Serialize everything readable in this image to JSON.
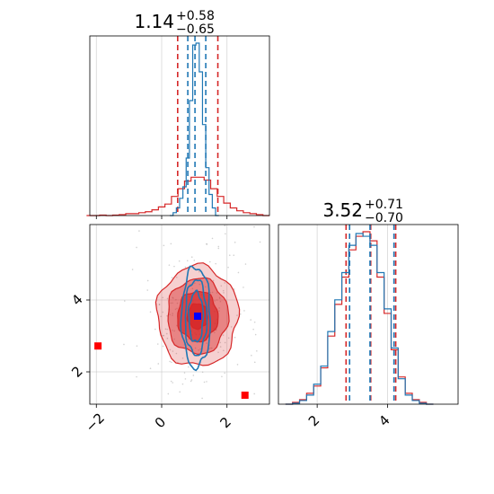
{
  "chart_data": {
    "type": "corner",
    "panels": [
      {
        "id": "param1-histogram",
        "type": "histogram",
        "title": {
          "value": "1.14",
          "upper": "+0.58",
          "lower": "−0.65"
        },
        "xlim": [
          -2.2,
          3.3
        ],
        "xticks": [],
        "series": [
          {
            "name": "",
            "color": "#d62728",
            "x": [
              -2.2,
              -2.0,
              -1.8,
              -1.6,
              -1.4,
              -1.2,
              -1.0,
              -0.8,
              -0.6,
              -0.4,
              -0.2,
              0.0,
              0.2,
              0.4,
              0.6,
              0.8,
              1.0,
              1.2,
              1.4,
              1.6,
              1.8,
              2.0,
              2.2,
              2.4,
              2.6,
              2.8,
              3.0,
              3.2
            ],
            "values": [
              0,
              0,
              0.5,
              0,
              0.5,
              1,
              2,
              2,
              3,
              4,
              6,
              9,
              12,
              20,
              28,
              36,
              40,
              40,
              37,
              28,
              20,
              13,
              8,
              5,
              3,
              2,
              1,
              0
            ],
            "quantiles": [
              0.49,
              1.14,
              1.72
            ]
          },
          {
            "name": "",
            "color": "#1f77b4",
            "x": [
              0.3,
              0.4,
              0.5,
              0.6,
              0.7,
              0.8,
              0.9,
              1.0,
              1.1,
              1.2,
              1.3,
              1.4,
              1.5,
              1.6,
              1.7
            ],
            "values": [
              0,
              3,
              8,
              18,
              30,
              60,
              120,
              178,
              180,
              150,
              95,
              50,
              22,
              8,
              0
            ],
            "quantiles": [
              0.8,
              1.02,
              1.35
            ]
          }
        ]
      },
      {
        "id": "param2-histogram",
        "type": "histogram",
        "title": {
          "value": "3.52",
          "upper": "+0.71",
          "lower": "−0.70"
        },
        "xlim": [
          0.9,
          6.0
        ],
        "xticks": [
          2,
          4
        ],
        "series": [
          {
            "name": "",
            "color": "#d62728",
            "x": [
              1.2,
              1.4,
              1.6,
              1.8,
              2.0,
              2.2,
              2.4,
              2.6,
              2.8,
              3.0,
              3.2,
              3.4,
              3.6,
              3.8,
              4.0,
              4.2,
              4.4,
              4.6,
              4.8,
              5.0,
              5.2
            ],
            "values": [
              0,
              2,
              5,
              12,
              20,
              40,
              75,
              110,
              140,
              170,
              185,
              190,
              180,
              140,
              100,
              60,
              30,
              12,
              5,
              2,
              0
            ],
            "quantiles": [
              2.82,
              3.52,
              4.23
            ]
          },
          {
            "name": "",
            "color": "#1f77b4",
            "x": [
              1.2,
              1.4,
              1.6,
              1.8,
              2.0,
              2.2,
              2.4,
              2.6,
              2.8,
              3.0,
              3.2,
              3.4,
              3.6,
              3.8,
              4.0,
              4.2,
              4.4,
              4.6,
              4.8,
              5.0,
              5.2
            ],
            "values": [
              0,
              1,
              4,
              10,
              22,
              42,
              80,
              115,
              145,
              175,
              188,
              185,
              175,
              145,
              105,
              62,
              28,
              10,
              4,
              1,
              0
            ],
            "quantiles": [
              2.92,
              3.5,
              4.18
            ]
          }
        ]
      },
      {
        "id": "joint-contour",
        "type": "contour",
        "xlim": [
          -2.2,
          3.3
        ],
        "ylim": [
          1.1,
          6.1
        ],
        "xticks": [
          -2,
          0,
          2
        ],
        "yticks": [
          2,
          4
        ],
        "series": [
          {
            "name": "",
            "color": "#d62728",
            "center": [
              1.1,
              3.55
            ],
            "sigma": [
              0.62,
              0.7
            ],
            "levels": [
              0.5,
              1.0,
              1.5,
              2.0
            ]
          },
          {
            "name": "",
            "color": "#1f77b4",
            "center": [
              1.05,
              3.52
            ],
            "sigma": [
              0.22,
              0.7
            ],
            "levels": [
              1.0,
              1.5,
              2.0
            ]
          }
        ],
        "markers": [
          {
            "color": "#0000ff",
            "x": 1.1,
            "y": 3.55
          },
          {
            "color": "#ff0000",
            "x": -1.95,
            "y": 2.72
          },
          {
            "color": "#ff0000",
            "x": 2.55,
            "y": 1.35
          }
        ]
      }
    ]
  }
}
